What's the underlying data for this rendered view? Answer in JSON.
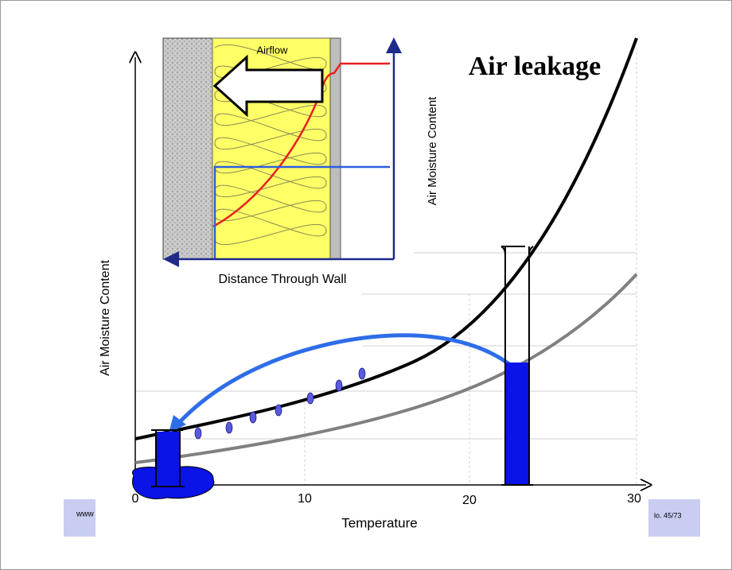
{
  "title": "Air leakage",
  "main_chart": {
    "y_axis_label": "Air Moisture Content",
    "x_axis_label": "Temperature",
    "x_ticks": [
      "0",
      "10",
      "20",
      "30"
    ]
  },
  "inset": {
    "flow_label": "Airflow",
    "x_axis_label": "Distance Through Wall",
    "y_axis_label": "Air Moisture Content"
  },
  "footer": {
    "left": "www",
    "right": "lo. 45/73"
  }
}
